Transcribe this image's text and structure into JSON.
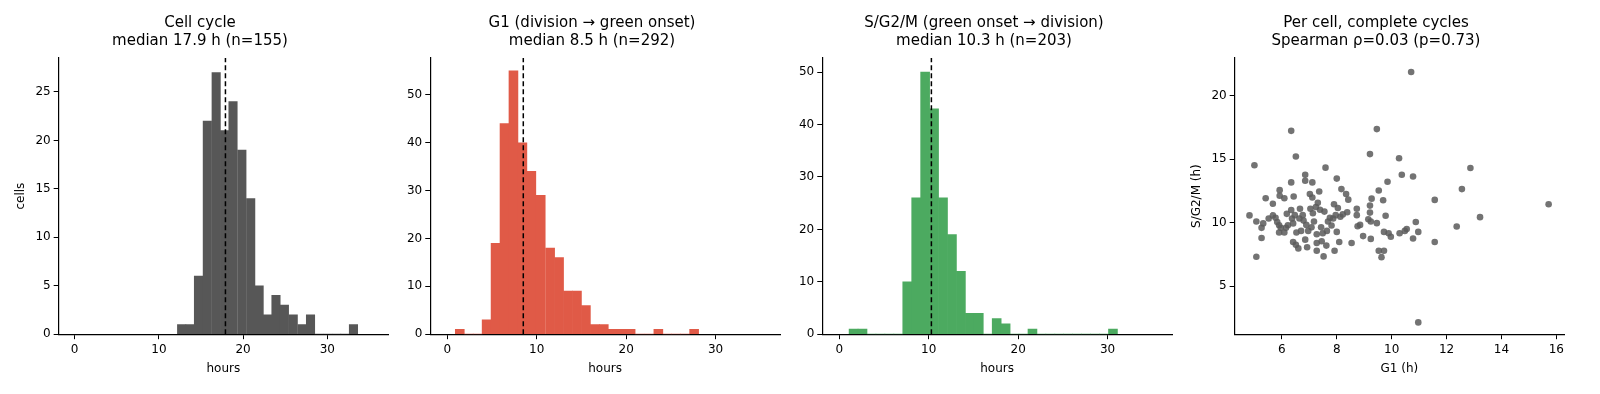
{
  "chart_data": [
    {
      "type": "histogram",
      "title": "Cell cycle",
      "subtitle": "median 17.9 h (n=155)",
      "xlabel": "hours",
      "ylabel": "cells",
      "color": "#575757",
      "bins": [
        12.2,
        13.2,
        14.2,
        15.2,
        16.3,
        17.3,
        18.3,
        19.3,
        20.4,
        21.4,
        22.4,
        23.4,
        24.4,
        25.4,
        26.5,
        27.5,
        28.5,
        29.5,
        30.6,
        31.6,
        32.6,
        33.6
      ],
      "values": [
        1,
        1,
        6,
        22,
        27,
        21,
        24,
        19,
        14,
        5,
        2,
        4,
        3,
        2,
        1,
        2,
        0,
        0,
        0,
        0,
        1
      ],
      "xlim": [
        -1.9,
        37.2
      ],
      "xticks": [
        0,
        10,
        20,
        30
      ],
      "ylim": [
        0,
        28.5
      ],
      "yticks": [
        0,
        5,
        10,
        15,
        20,
        25
      ],
      "grid": false,
      "ref_lines": [
        {
          "axis": "x",
          "value": 17.9,
          "color": "#000000",
          "line_style": "dashed"
        }
      ]
    },
    {
      "type": "histogram",
      "title": "G1 (division → green onset)",
      "subtitle": "median 8.5 h (n=292)",
      "xlabel": "hours",
      "color": "#e05a47",
      "bins": [
        0.9,
        1.9,
        2.9,
        3.9,
        4.9,
        5.9,
        6.9,
        7.9,
        8.9,
        9.9,
        11.0,
        12.0,
        13.0,
        14.0,
        15.0,
        16.0,
        17.0,
        18.0,
        19.0,
        20.0,
        21.0,
        22.0,
        23.1,
        24.1,
        25.1,
        26.1,
        27.1,
        28.1
      ],
      "values": [
        1,
        0,
        0,
        3,
        19,
        44,
        55,
        40,
        34,
        29,
        18,
        16,
        9,
        9,
        6,
        2,
        2,
        1,
        1,
        1,
        0,
        0,
        1,
        0,
        0,
        0,
        1
      ],
      "xlim": [
        -1.9,
        37.2
      ],
      "xticks": [
        0,
        10,
        20,
        30
      ],
      "ylim": [
        0,
        57.7
      ],
      "yticks": [
        0,
        10,
        20,
        30,
        40,
        50
      ],
      "grid": false,
      "ref_lines": [
        {
          "axis": "x",
          "value": 8.5,
          "color": "#000000",
          "line_style": "dashed"
        }
      ]
    },
    {
      "type": "histogram",
      "title": "S/G2/M (green onset → division)",
      "subtitle": "median 10.3 h (n=203)",
      "xlabel": "hours",
      "color": "#4caa60",
      "bins": [
        1.1,
        2.1,
        3.1,
        4.1,
        5.1,
        6.1,
        7.1,
        8.1,
        9.1,
        10.1,
        11.1,
        12.1,
        13.1,
        14.1,
        15.1,
        16.1,
        17.1,
        18.1,
        19.1,
        20.1,
        21.1,
        22.1,
        23.1,
        24.1,
        25.1,
        26.1,
        27.1,
        28.1,
        29.1,
        30.1,
        31.1
      ],
      "values": [
        1,
        1,
        0,
        0,
        0,
        0,
        10,
        26,
        50,
        43,
        26,
        19,
        12,
        4,
        4,
        0,
        3,
        2,
        0,
        0,
        1,
        0,
        0,
        0,
        0,
        0,
        0,
        0,
        0,
        1
      ],
      "xlim": [
        -1.9,
        37.2
      ],
      "xticks": [
        0,
        10,
        20,
        30
      ],
      "ylim": [
        0,
        52.7
      ],
      "yticks": [
        0,
        10,
        20,
        30,
        40,
        50
      ],
      "grid": false,
      "ref_lines": [
        {
          "axis": "x",
          "value": 10.3,
          "color": "#000000",
          "line_style": "dashed"
        }
      ]
    },
    {
      "type": "scatter",
      "title": "Per cell, complete cycles",
      "subtitle": "Spearman ρ=0.03 (p=0.73)",
      "xlabel": "G1 (h)",
      "ylabel": "S/G2/M (h)",
      "color": "#5a5a5a",
      "marker": "circle",
      "x": [
        4.82,
        5.0,
        5.07,
        5.07,
        5.26,
        5.26,
        5.32,
        5.41,
        5.52,
        5.67,
        5.67,
        5.77,
        5.83,
        5.9,
        5.9,
        5.92,
        5.92,
        5.96,
        6.09,
        6.09,
        6.15,
        6.18,
        6.22,
        6.34,
        6.34,
        6.34,
        6.37,
        6.41,
        6.41,
        6.43,
        6.47,
        6.51,
        6.51,
        6.53,
        6.6,
        6.64,
        6.66,
        6.7,
        6.76,
        6.79,
        6.85,
        6.85,
        6.85,
        6.89,
        6.92,
        6.96,
        7.02,
        7.04,
        7.08,
        7.11,
        7.11,
        7.13,
        7.17,
        7.24,
        7.27,
        7.27,
        7.27,
        7.31,
        7.36,
        7.39,
        7.43,
        7.45,
        7.49,
        7.52,
        7.55,
        7.59,
        7.62,
        7.64,
        7.68,
        7.75,
        7.81,
        7.87,
        7.9,
        7.92,
        7.96,
        8.0,
        8.0,
        8.04,
        8.09,
        8.13,
        8.17,
        8.22,
        8.34,
        8.38,
        8.42,
        8.54,
        8.73,
        8.73,
        8.76,
        8.85,
        8.96,
        9.15,
        9.21,
        9.21,
        9.21,
        9.24,
        9.24,
        9.27,
        9.46,
        9.46,
        9.53,
        9.53,
        9.63,
        9.69,
        9.72,
        9.72,
        9.78,
        9.85,
        9.89,
        9.97,
        10.27,
        10.29,
        10.37,
        10.48,
        10.55,
        10.71,
        10.78,
        10.78,
        10.88,
        10.97,
        10.97,
        11.57,
        11.57,
        12.37,
        12.56,
        12.87,
        13.22,
        15.72
      ],
      "values": [
        10.58,
        14.53,
        10.1,
        7.32,
        9.6,
        8.8,
        9.95,
        11.93,
        10.33,
        11.5,
        10.58,
        10.4,
        10.05,
        9.8,
        9.23,
        12.57,
        12.13,
        9.6,
        11.93,
        9.23,
        9.6,
        10.7,
        9.8,
        13.18,
        17.24,
        11.0,
        10.33,
        9.95,
        8.48,
        12.07,
        10.6,
        15.22,
        8.26,
        9.23,
        7.98,
        10.33,
        11.1,
        9.36,
        10.6,
        10.17,
        13.78,
        13.31,
        8.67,
        9.83,
        8.07,
        9.36,
        12.27,
        11.1,
        9.64,
        13.18,
        11.99,
        10.75,
        10.1,
        11.24,
        9.09,
        8.4,
        7.79,
        11.57,
        12.46,
        11.02,
        9.64,
        8.54,
        9.17,
        7.35,
        10.88,
        14.34,
        8.2,
        9.36,
        10.1,
        10.39,
        9.78,
        10.33,
        11.46,
        7.79,
        10.6,
        13.48,
        9.28,
        11.16,
        8.48,
        10.47,
        12.65,
        10.66,
        12.27,
        10.83,
        11.82,
        8.4,
        11.1,
        10.6,
        9.72,
        9.83,
        8.95,
        10.28,
        15.41,
        11.35,
        10.8,
        10.1,
        8.73,
        11.9,
        17.38,
        9.97,
        12.54,
        7.79,
        7.29,
        11.77,
        9.28,
        7.79,
        10.55,
        13.23,
        9.17,
        8.9,
        15.08,
        9.17,
        13.78,
        9.36,
        9.5,
        21.88,
        13.65,
        8.76,
        10.06,
        2.15,
        9.28,
        11.8,
        8.48,
        9.7,
        12.65,
        14.31,
        10.44,
        11.46
      ],
      "xlim": [
        4.28,
        16.28
      ],
      "xticks": [
        6,
        8,
        10,
        12,
        14,
        16
      ],
      "ylim": [
        1.22,
        22.98
      ],
      "yticks": [
        5,
        10,
        15,
        20
      ],
      "grid": false
    }
  ]
}
